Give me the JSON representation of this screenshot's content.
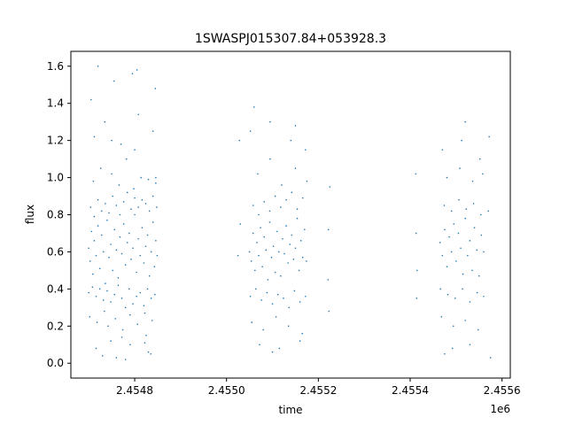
{
  "chart_data": {
    "type": "scatter",
    "title": "1SWASPJ015307.84+053928.3",
    "xlabel": "time",
    "ylabel": "flux",
    "x_offset_label": "1e6",
    "xlim": [
      2454661,
      2455618
    ],
    "ylim": [
      -0.08,
      1.68
    ],
    "x_ticks": [
      {
        "value": 2454800,
        "label": "2.4548"
      },
      {
        "value": 2455000,
        "label": "2.4550"
      },
      {
        "value": 2455200,
        "label": "2.4552"
      },
      {
        "value": 2455400,
        "label": "2.4554"
      },
      {
        "value": 2455600,
        "label": "2.4556"
      }
    ],
    "y_ticks": [
      {
        "value": 0.0,
        "label": "0.0"
      },
      {
        "value": 0.2,
        "label": "0.2"
      },
      {
        "value": 0.4,
        "label": "0.4"
      },
      {
        "value": 0.6,
        "label": "0.6"
      },
      {
        "value": 0.8,
        "label": "0.8"
      },
      {
        "value": 1.0,
        "label": "1.0"
      },
      {
        "value": 1.2,
        "label": "1.2"
      },
      {
        "value": 1.4,
        "label": "1.4"
      },
      {
        "value": 1.6,
        "label": "1.6"
      }
    ],
    "grid": false,
    "marker_color": "#1f77b4",
    "series": [
      {
        "x": [
          2454700,
          2454703,
          2454706,
          2454709,
          2454712,
          2454716,
          2454720,
          2454724,
          2454728,
          2454732,
          2454736,
          2454740,
          2454744,
          2454748,
          2454752,
          2454756,
          2454760,
          2454764,
          2454768,
          2454772,
          2454776,
          2454780,
          2454784,
          2454788,
          2454792,
          2454796,
          2454800,
          2454804,
          2454808,
          2454812,
          2454816,
          2454820,
          2454824,
          2454828,
          2454832,
          2454836,
          2454840,
          2454843,
          2454846,
          2454849,
          2454700,
          2454704,
          2454708,
          2454712,
          2454716,
          2454720,
          2454724,
          2454728,
          2454732,
          2454736,
          2454740,
          2454744,
          2454748,
          2454752,
          2454756,
          2454760,
          2454764,
          2454768,
          2454772,
          2454776,
          2454780,
          2454784,
          2454788,
          2454792,
          2454796,
          2454800,
          2454804,
          2454808,
          2454812,
          2454816,
          2454820,
          2454824,
          2454828,
          2454832,
          2454836,
          2454840,
          2454844,
          2454848,
          2454702,
          2454710,
          2454718,
          2454726,
          2454734,
          2454742,
          2454750,
          2454758,
          2454766,
          2454774,
          2454782,
          2454790,
          2454798,
          2454806,
          2454814,
          2454822,
          2454830,
          2454838,
          2454846,
          2454712,
          2454735,
          2454748,
          2454770,
          2454790,
          2454808,
          2454825,
          2454840,
          2454716,
          2454750,
          2454772,
          2454800,
          2454822,
          2454846,
          2454705,
          2454730,
          2454755,
          2454780,
          2454805,
          2454830,
          2454845,
          2454720,
          2454760,
          2454795,
          2454835
        ],
        "y": [
          0.62,
          0.55,
          0.71,
          0.48,
          0.66,
          0.58,
          0.74,
          0.51,
          0.69,
          0.6,
          0.43,
          0.77,
          0.57,
          0.64,
          0.5,
          0.72,
          0.61,
          0.46,
          0.68,
          0.59,
          0.75,
          0.53,
          0.65,
          0.7,
          0.56,
          0.62,
          0.8,
          0.49,
          0.67,
          0.58,
          0.73,
          0.54,
          0.63,
          0.69,
          0.47,
          0.6,
          0.76,
          0.52,
          0.66,
          0.58,
          0.38,
          0.84,
          0.41,
          0.79,
          0.36,
          0.88,
          0.4,
          0.82,
          0.34,
          0.86,
          0.39,
          0.81,
          0.33,
          0.9,
          0.37,
          0.85,
          0.42,
          0.8,
          0.35,
          0.87,
          0.3,
          0.92,
          0.4,
          0.83,
          0.32,
          0.89,
          0.36,
          0.84,
          0.38,
          0.88,
          0.31,
          0.86,
          0.4,
          0.82,
          0.35,
          0.9,
          0.37,
          0.84,
          0.25,
          0.98,
          0.22,
          1.05,
          0.28,
          0.2,
          1.02,
          0.24,
          0.96,
          0.18,
          1.1,
          0.26,
          0.94,
          0.21,
          1.0,
          0.27,
          0.99,
          0.23,
          0.97,
          1.22,
          1.3,
          0.12,
          1.18,
          0.1,
          1.34,
          0.15,
          1.25,
          0.08,
          1.2,
          0.14,
          1.15,
          0.11,
          1.0,
          1.42,
          0.04,
          1.52,
          0.02,
          1.58,
          0.06,
          1.48,
          1.6,
          0.03,
          1.56,
          0.05
        ]
      },
      {
        "x": [
          2455050,
          2455054,
          2455058,
          2455062,
          2455066,
          2455070,
          2455074,
          2455078,
          2455082,
          2455086,
          2455090,
          2455094,
          2455098,
          2455102,
          2455106,
          2455110,
          2455114,
          2455118,
          2455122,
          2455126,
          2455130,
          2455134,
          2455138,
          2455142,
          2455146,
          2455150,
          2455154,
          2455158,
          2455162,
          2455166,
          2455170,
          2455174,
          2455052,
          2455058,
          2455064,
          2455070,
          2455076,
          2455082,
          2455088,
          2455094,
          2455100,
          2455106,
          2455112,
          2455118,
          2455124,
          2455130,
          2455136,
          2455142,
          2455148,
          2455154,
          2455160,
          2455166,
          2455172,
          2455055,
          2455068,
          2455080,
          2455095,
          2455108,
          2455120,
          2455135,
          2455150,
          2455165,
          2455175,
          2455052,
          2455072,
          2455095,
          2455115,
          2455140,
          2455160,
          2455172,
          2455060,
          2455100,
          2455150,
          2455025,
          2455030,
          2455028,
          2455222,
          2455225,
          2455223,
          2455221
        ],
        "y": [
          0.6,
          0.55,
          0.7,
          0.5,
          0.65,
          0.58,
          0.73,
          0.52,
          0.68,
          0.61,
          0.45,
          0.76,
          0.57,
          0.63,
          0.49,
          0.71,
          0.6,
          0.47,
          0.67,
          0.59,
          0.74,
          0.54,
          0.64,
          0.69,
          0.56,
          0.62,
          0.78,
          0.5,
          0.66,
          0.57,
          0.72,
          0.55,
          0.36,
          0.85,
          0.4,
          0.8,
          0.34,
          0.87,
          0.38,
          0.82,
          0.32,
          0.9,
          0.37,
          0.84,
          0.35,
          0.88,
          0.3,
          0.92,
          0.39,
          0.83,
          0.33,
          0.89,
          0.36,
          0.22,
          1.02,
          0.18,
          1.1,
          0.25,
          0.96,
          0.2,
          1.05,
          0.16,
          0.98,
          1.25,
          0.1,
          1.3,
          0.08,
          1.2,
          0.12,
          1.15,
          1.38,
          0.06,
          1.28,
          0.58,
          0.75,
          1.2,
          0.72,
          0.95,
          0.28,
          0.45
        ]
      },
      {
        "x": [
          2455465,
          2455470,
          2455475,
          2455480,
          2455485,
          2455490,
          2455495,
          2455500,
          2455505,
          2455510,
          2455515,
          2455520,
          2455525,
          2455530,
          2455535,
          2455540,
          2455545,
          2455550,
          2455555,
          2455560,
          2455466,
          2455474,
          2455482,
          2455490,
          2455498,
          2455506,
          2455514,
          2455522,
          2455530,
          2455538,
          2455546,
          2455554,
          2455560,
          2455468,
          2455480,
          2455494,
          2455508,
          2455520,
          2455536,
          2455548,
          2455558,
          2455470,
          2455492,
          2455512,
          2455530,
          2455552,
          2455475,
          2455520,
          2455413,
          2455415,
          2455414,
          2455412,
          2455570,
          2455572,
          2455575
        ],
        "y": [
          0.65,
          0.58,
          0.72,
          0.52,
          0.68,
          0.6,
          0.75,
          0.55,
          0.7,
          0.62,
          0.48,
          0.78,
          0.58,
          0.66,
          0.5,
          0.73,
          0.61,
          0.47,
          0.69,
          0.6,
          0.4,
          0.85,
          0.37,
          0.82,
          0.35,
          0.88,
          0.4,
          0.83,
          0.33,
          0.86,
          0.38,
          0.8,
          0.36,
          0.25,
          1.0,
          0.2,
          1.05,
          0.23,
          0.98,
          0.18,
          1.02,
          1.15,
          0.08,
          1.2,
          0.1,
          1.1,
          0.05,
          1.3,
          0.7,
          0.5,
          0.35,
          1.02,
          0.82,
          1.22,
          0.03
        ]
      }
    ]
  }
}
